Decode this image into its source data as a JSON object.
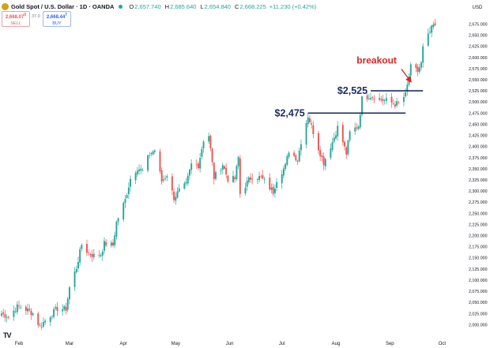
{
  "header": {
    "title": "Gold Spot / U.S. Dollar · 1D · OANDA",
    "open_label": "O",
    "open": "2,657.740",
    "high_label": "H",
    "high": "2,685.640",
    "low_label": "L",
    "low": "2,654.840",
    "close_label": "C",
    "close": "2,668.225",
    "change": "+11.230 (+0.42%)",
    "sell_price": "2,668.07",
    "sell_sup": "0",
    "sell_label": "SELL",
    "buy_price": "2,668.44",
    "buy_sup": "7",
    "buy_label": "BUY",
    "spread": "37.0"
  },
  "currency_label": "USD",
  "logo_text": "TV",
  "colors": {
    "up": "#26a69a",
    "down": "#ef5350",
    "level_line": "#1c2e5e",
    "annotation": "#e02020",
    "axis_text": "#131722"
  },
  "chart_data": {
    "type": "candlestick",
    "ylim": [
      1990,
      2690
    ],
    "yticks": [
      2000,
      2025,
      2050,
      2075,
      2100,
      2125,
      2150,
      2175,
      2200,
      2225,
      2250,
      2275,
      2300,
      2325,
      2350,
      2375,
      2400,
      2425,
      2450,
      2475,
      2500,
      2525,
      2550,
      2575,
      2600,
      2625,
      2650,
      2675
    ],
    "ytick_labels": [
      "2,000.000",
      "2,025.000",
      "2,050.000",
      "2,075.000",
      "2,100.000",
      "2,125.000",
      "2,150.000",
      "2,175.000",
      "2,200.000",
      "2,225.000",
      "2,250.000",
      "2,275.000",
      "2,300.000",
      "2,325.000",
      "2,350.000",
      "2,375.000",
      "2,400.000",
      "2,425.000",
      "2,450.000",
      "2,475.000",
      "2,500.000",
      "2,525.000",
      "2,550.000",
      "2,575.000",
      "2,600.000",
      "2,625.000",
      "2,650.000",
      "2,675.000"
    ],
    "xtick_labels": [
      "Feb",
      "Mar",
      "Apr",
      "May",
      "Jun",
      "Jul",
      "Aug",
      "Sep",
      "Oct"
    ],
    "xtick_dates": [
      "2024-02-01",
      "2024-03-01",
      "2024-04-01",
      "2024-05-01",
      "2024-06-01",
      "2024-07-01",
      "2024-08-01",
      "2024-09-01",
      "2024-10-01"
    ],
    "close_path": [
      [
        "2024-01-22",
        2025
      ],
      [
        "2024-01-26",
        2018
      ],
      [
        "2024-01-31",
        2040
      ],
      [
        "2024-02-02",
        2040
      ],
      [
        "2024-02-06",
        2032
      ],
      [
        "2024-02-09",
        2025
      ],
      [
        "2024-02-13",
        1995
      ],
      [
        "2024-02-15",
        2005
      ],
      [
        "2024-02-20",
        2025
      ],
      [
        "2024-02-23",
        2036
      ],
      [
        "2024-02-28",
        2035
      ],
      [
        "2024-03-01",
        2083
      ],
      [
        "2024-03-05",
        2128
      ],
      [
        "2024-03-08",
        2180
      ],
      [
        "2024-03-12",
        2160
      ],
      [
        "2024-03-15",
        2155
      ],
      [
        "2024-03-19",
        2158
      ],
      [
        "2024-03-21",
        2182
      ],
      [
        "2024-03-26",
        2178
      ],
      [
        "2024-03-28",
        2230
      ],
      [
        "2024-04-02",
        2280
      ],
      [
        "2024-04-05",
        2328
      ],
      [
        "2024-04-09",
        2352
      ],
      [
        "2024-04-12",
        2345
      ],
      [
        "2024-04-16",
        2383
      ],
      [
        "2024-04-19",
        2392
      ],
      [
        "2024-04-23",
        2322
      ],
      [
        "2024-04-26",
        2337
      ],
      [
        "2024-04-30",
        2285
      ],
      [
        "2024-05-03",
        2301
      ],
      [
        "2024-05-07",
        2314
      ],
      [
        "2024-05-10",
        2360
      ],
      [
        "2024-05-14",
        2358
      ],
      [
        "2024-05-17",
        2415
      ],
      [
        "2024-05-20",
        2425
      ],
      [
        "2024-05-23",
        2330
      ],
      [
        "2024-05-28",
        2360
      ],
      [
        "2024-05-31",
        2327
      ],
      [
        "2024-06-04",
        2327
      ],
      [
        "2024-06-06",
        2375
      ],
      [
        "2024-06-07",
        2294
      ],
      [
        "2024-06-12",
        2325
      ],
      [
        "2024-06-14",
        2333
      ],
      [
        "2024-06-19",
        2330
      ],
      [
        "2024-06-21",
        2322
      ],
      [
        "2024-06-26",
        2298
      ],
      [
        "2024-06-28",
        2326
      ],
      [
        "2024-07-03",
        2356
      ],
      [
        "2024-07-05",
        2391
      ],
      [
        "2024-07-10",
        2371
      ],
      [
        "2024-07-12",
        2411
      ],
      [
        "2024-07-16",
        2469
      ],
      [
        "2024-07-18",
        2445
      ],
      [
        "2024-07-22",
        2396
      ],
      [
        "2024-07-25",
        2364
      ],
      [
        "2024-07-30",
        2410
      ],
      [
        "2024-08-02",
        2443
      ],
      [
        "2024-08-05",
        2410
      ],
      [
        "2024-08-07",
        2384
      ],
      [
        "2024-08-09",
        2431
      ],
      [
        "2024-08-14",
        2447
      ],
      [
        "2024-08-16",
        2507
      ],
      [
        "2024-08-20",
        2514
      ],
      [
        "2024-08-23",
        2512
      ],
      [
        "2024-08-28",
        2504
      ],
      [
        "2024-08-30",
        2503
      ],
      [
        "2024-09-04",
        2495
      ],
      [
        "2024-09-06",
        2497
      ],
      [
        "2024-09-10",
        2516
      ],
      [
        "2024-09-13",
        2578
      ],
      [
        "2024-09-17",
        2569
      ],
      [
        "2024-09-19",
        2586
      ],
      [
        "2024-09-20",
        2621
      ],
      [
        "2024-09-24",
        2657
      ],
      [
        "2024-09-26",
        2672
      ],
      [
        "2024-09-27",
        2668
      ]
    ],
    "levels": [
      {
        "label": "$2,475",
        "value": 2475,
        "from": "2024-07-16",
        "to": "2024-09-10"
      },
      {
        "label": "$2,525",
        "value": 2525,
        "from": "2024-08-21",
        "to": "2024-09-20"
      }
    ],
    "annotations": [
      {
        "text": "breakout",
        "points_to": [
          "2024-09-14",
          2540
        ]
      }
    ]
  }
}
